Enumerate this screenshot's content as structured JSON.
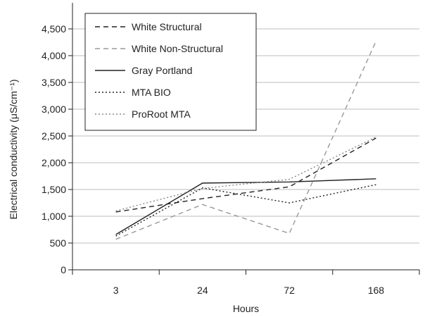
{
  "chart_data": {
    "type": "line",
    "title": "",
    "xlabel": "Hours",
    "ylabel": "Electrical conductivity (μS/cm⁻¹)",
    "categories": [
      "3",
      "24",
      "72",
      "168"
    ],
    "ylim": [
      0,
      4500
    ],
    "yticks": [
      0,
      500,
      1000,
      1500,
      2000,
      2500,
      3000,
      3500,
      4000,
      4500
    ],
    "ytick_labels": [
      "0",
      "500",
      "1,000",
      "1,500",
      "2,000",
      "2,500",
      "3,000",
      "3,500",
      "4,000",
      "4,500"
    ],
    "grid": true,
    "legend_position": "top-left",
    "series": [
      {
        "name": "White Structural",
        "values": [
          1080,
          1330,
          1550,
          2460
        ],
        "color": "#222222",
        "dash": "dash"
      },
      {
        "name": "White Non-Structural",
        "values": [
          570,
          1220,
          680,
          4270
        ],
        "color": "#999999",
        "dash": "dash"
      },
      {
        "name": "Gray Portland",
        "values": [
          660,
          1620,
          1640,
          1700
        ],
        "color": "#222222",
        "dash": "solid"
      },
      {
        "name": "MTA BIO",
        "values": [
          630,
          1530,
          1250,
          1590
        ],
        "color": "#222222",
        "dash": "dot"
      },
      {
        "name": "ProRoot MTA",
        "values": [
          1100,
          1520,
          1690,
          2480
        ],
        "color": "#888888",
        "dash": "dot"
      }
    ]
  }
}
